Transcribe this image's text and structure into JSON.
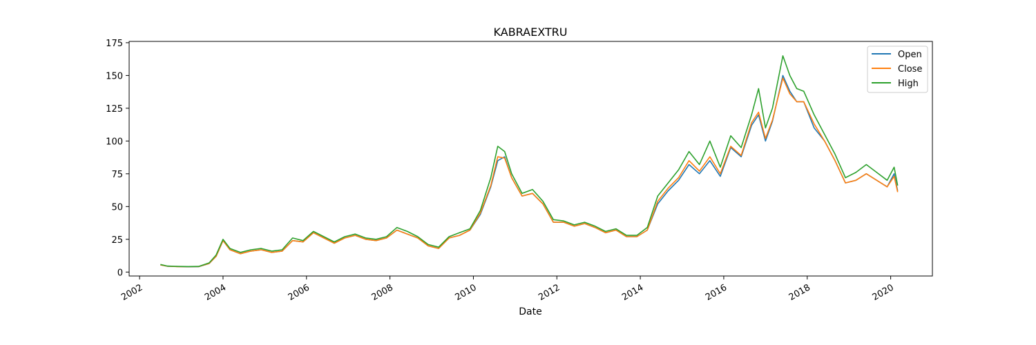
{
  "chart_data": {
    "type": "line",
    "title": "KABRAEXTRU",
    "xlabel": "Date",
    "ylabel": "",
    "xlim": [
      "2001-10-01",
      "2021-01-01"
    ],
    "ylim": [
      -3,
      176
    ],
    "x_ticks": [
      "2002",
      "2004",
      "2006",
      "2008",
      "2010",
      "2012",
      "2014",
      "2016",
      "2018",
      "2020"
    ],
    "y_ticks": [
      0,
      25,
      50,
      75,
      100,
      125,
      150,
      175
    ],
    "grid": false,
    "legend_position": "top-right",
    "x": [
      "2002-07",
      "2002-09",
      "2002-12",
      "2003-03",
      "2003-06",
      "2003-09",
      "2003-11",
      "2004-01",
      "2004-03",
      "2004-06",
      "2004-09",
      "2004-12",
      "2005-03",
      "2005-06",
      "2005-09",
      "2005-12",
      "2006-03",
      "2006-06",
      "2006-09",
      "2006-12",
      "2007-03",
      "2007-06",
      "2007-09",
      "2007-12",
      "2008-03",
      "2008-06",
      "2008-09",
      "2008-12",
      "2009-03",
      "2009-06",
      "2009-09",
      "2009-12",
      "2010-03",
      "2010-06",
      "2010-08",
      "2010-10",
      "2010-12",
      "2011-03",
      "2011-06",
      "2011-09",
      "2011-12",
      "2012-03",
      "2012-06",
      "2012-09",
      "2012-12",
      "2013-03",
      "2013-06",
      "2013-09",
      "2013-12",
      "2014-03",
      "2014-06",
      "2014-09",
      "2014-12",
      "2015-03",
      "2015-06",
      "2015-09",
      "2015-12",
      "2016-03",
      "2016-06",
      "2016-09",
      "2016-11",
      "2017-01",
      "2017-03",
      "2017-06",
      "2017-08",
      "2017-10",
      "2017-12",
      "2018-03",
      "2018-06",
      "2018-09",
      "2018-12",
      "2019-03",
      "2019-06",
      "2019-09",
      "2019-12",
      "2020-02",
      "2020-03"
    ],
    "series": [
      {
        "name": "Open",
        "color": "#1f77b4",
        "values": [
          5.5,
          4.4,
          4.2,
          4.0,
          4.1,
          6.5,
          12,
          24,
          17,
          14,
          16,
          17,
          15,
          16,
          24,
          23,
          30,
          26,
          22,
          26,
          28,
          25,
          24,
          26,
          32,
          29,
          26,
          20,
          18,
          26,
          28,
          32,
          44,
          65,
          85,
          88,
          72,
          58,
          60,
          52,
          38,
          38,
          35,
          37,
          34,
          30,
          32,
          27,
          27,
          32,
          52,
          62,
          70,
          82,
          75,
          85,
          73,
          95,
          88,
          112,
          120,
          100,
          115,
          150,
          138,
          130,
          130,
          110,
          100,
          85,
          68,
          70,
          75,
          70,
          65,
          75,
          62
        ]
      },
      {
        "name": "Close",
        "color": "#ff7f0e",
        "values": [
          5.4,
          4.5,
          4.1,
          4.1,
          4.2,
          6.6,
          12,
          24,
          17,
          14,
          16,
          17,
          15,
          16,
          24,
          23,
          30,
          26,
          22,
          26,
          28,
          25,
          24,
          26,
          32,
          29,
          26,
          20,
          18,
          26,
          28,
          32,
          45,
          66,
          88,
          87,
          72,
          58,
          60,
          52,
          38,
          38,
          35,
          37,
          34,
          30,
          32,
          27,
          27,
          32,
          54,
          64,
          72,
          85,
          77,
          88,
          75,
          96,
          89,
          114,
          122,
          102,
          116,
          148,
          136,
          130,
          130,
          113,
          100,
          85,
          68,
          70,
          75,
          70,
          65,
          73,
          61
        ]
      },
      {
        "name": "High",
        "color": "#2ca02c",
        "values": [
          5.8,
          4.6,
          4.3,
          4.2,
          4.3,
          7.0,
          13,
          25,
          18,
          15,
          17,
          18,
          16,
          17,
          26,
          24,
          31,
          27,
          23,
          27,
          29,
          26,
          25,
          27,
          34,
          31,
          27,
          21,
          19,
          27,
          30,
          33,
          47,
          72,
          96,
          92,
          75,
          60,
          63,
          54,
          40,
          39,
          36,
          38,
          35,
          31,
          33,
          28,
          28,
          34,
          58,
          68,
          78,
          92,
          82,
          100,
          80,
          104,
          95,
          120,
          140,
          110,
          125,
          165,
          150,
          140,
          138,
          120,
          105,
          90,
          72,
          76,
          82,
          76,
          70,
          80,
          66
        ]
      }
    ]
  }
}
